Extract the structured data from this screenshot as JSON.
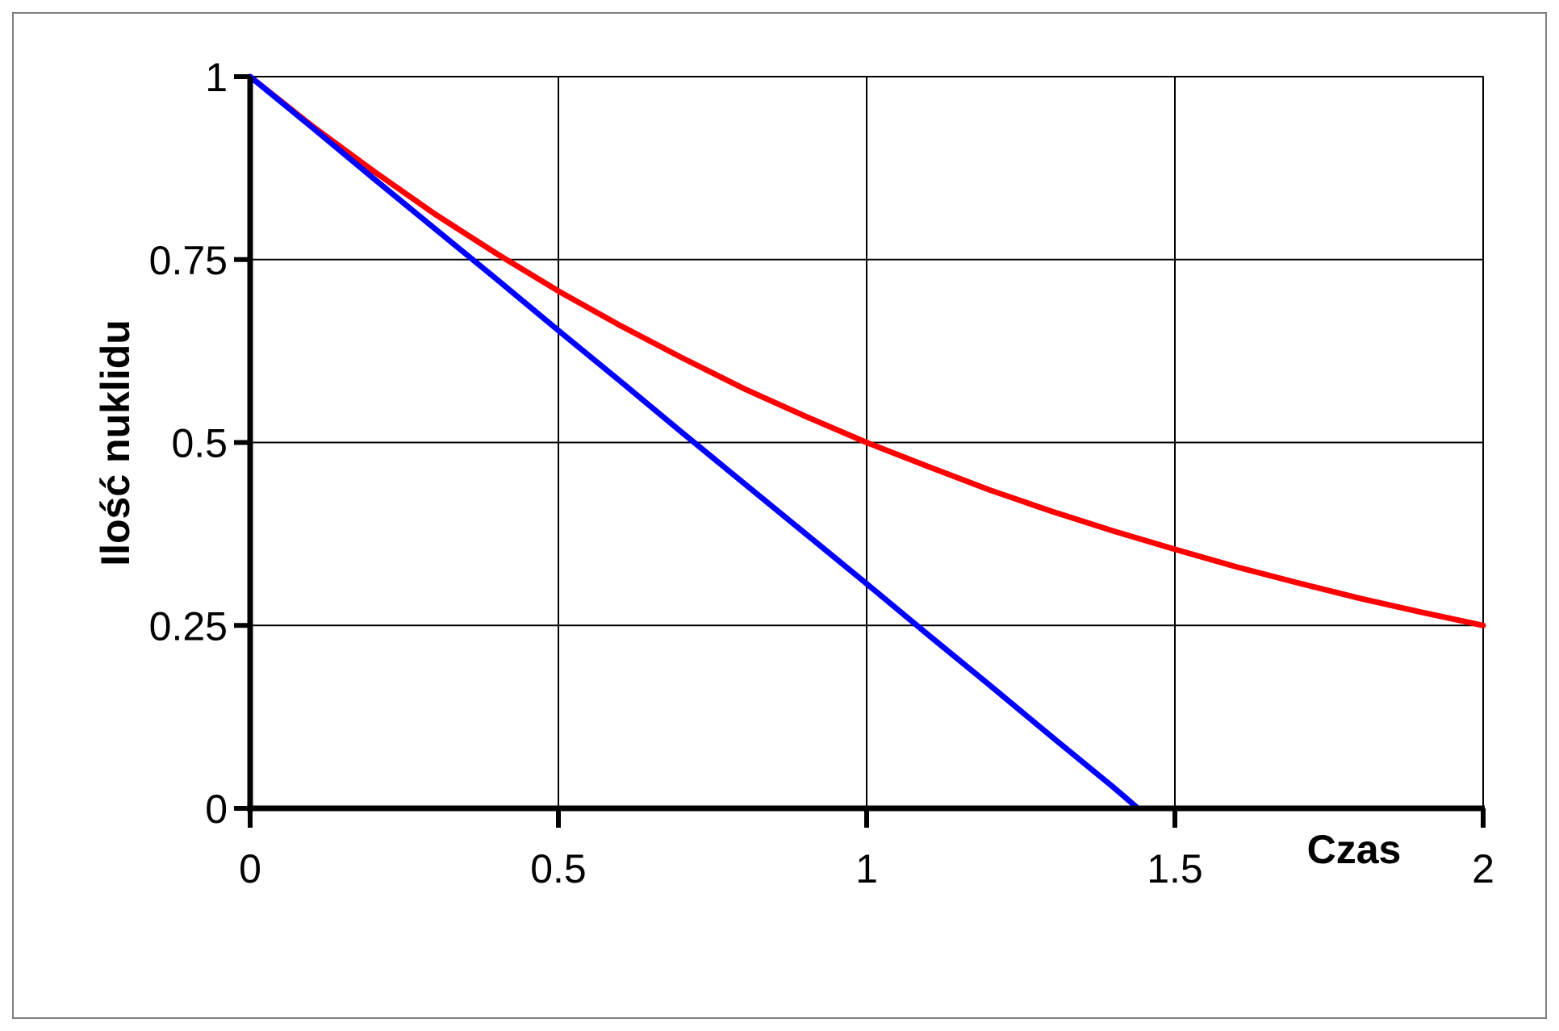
{
  "chart_data": {
    "type": "line",
    "title": "",
    "xlabel": "Czas",
    "ylabel": "Ilość nuklidu",
    "xlim": [
      0,
      2
    ],
    "ylim": [
      0,
      1
    ],
    "x_ticks": [
      "0",
      "0.5",
      "1",
      "1.5",
      "2"
    ],
    "y_ticks": [
      "0",
      "0.25",
      "0.5",
      "0.75",
      "1"
    ],
    "grid": true,
    "legend": "none",
    "series": [
      {
        "color": "#ff0000",
        "x": [
          0,
          0.1,
          0.2,
          0.3,
          0.4,
          0.5,
          0.6,
          0.7,
          0.8,
          0.9,
          1.0,
          1.1,
          1.2,
          1.3,
          1.4,
          1.5,
          1.6,
          1.7,
          1.8,
          1.9,
          2.0
        ],
        "y": [
          1.0,
          0.933,
          0.871,
          0.812,
          0.758,
          0.707,
          0.66,
          0.616,
          0.574,
          0.536,
          0.5,
          0.467,
          0.435,
          0.406,
          0.379,
          0.354,
          0.33,
          0.308,
          0.287,
          0.268,
          0.25
        ]
      },
      {
        "color": "#0000ff",
        "x": [
          0,
          0.1,
          0.2,
          0.3,
          0.4,
          0.5,
          0.6,
          0.7,
          0.8,
          0.9,
          1.0,
          1.1,
          1.2,
          1.3,
          1.4,
          1.44
        ],
        "y": [
          1.0,
          0.931,
          0.861,
          0.792,
          0.723,
          0.653,
          0.584,
          0.514,
          0.445,
          0.376,
          0.307,
          0.237,
          0.168,
          0.098,
          0.029,
          0.0
        ]
      }
    ]
  }
}
